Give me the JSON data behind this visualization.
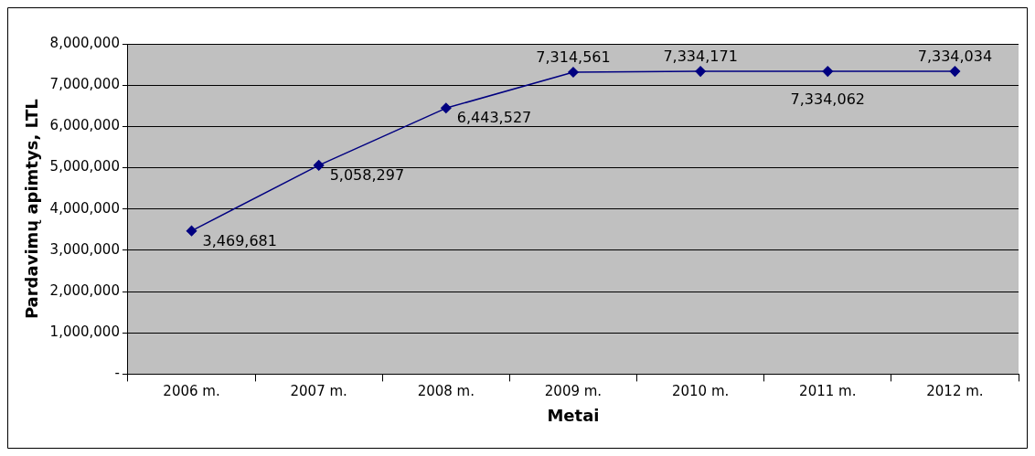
{
  "chart_data": {
    "type": "line",
    "xlabel": "Metai",
    "ylabel": "Pardavimų apimtys, LTL",
    "categories": [
      "2006 m.",
      "2007 m.",
      "2008 m.",
      "2009 m.",
      "2010 m.",
      "2011 m.",
      "2012 m."
    ],
    "series": [
      {
        "color": "#000080",
        "values": [
          3469681,
          5058297,
          6443527,
          7314561,
          7334171,
          7334062,
          7334034
        ],
        "value_labels": [
          "3,469,681",
          "5,058,297",
          "6,443,527",
          "7,314,561",
          "7,334,171",
          "7,334,062",
          "7,334,034"
        ]
      }
    ],
    "ylim": [
      0,
      8000000
    ],
    "yticks": [
      {
        "value": 0,
        "label": "-"
      },
      {
        "value": 1000000,
        "label": "1,000,000"
      },
      {
        "value": 2000000,
        "label": "2,000,000"
      },
      {
        "value": 3000000,
        "label": "3,000,000"
      },
      {
        "value": 4000000,
        "label": "4,000,000"
      },
      {
        "value": 5000000,
        "label": "5,000,000"
      },
      {
        "value": 6000000,
        "label": "6,000,000"
      },
      {
        "value": 7000000,
        "label": "7,000,000"
      },
      {
        "value": 8000000,
        "label": "8,000,000"
      }
    ],
    "grid": "y",
    "marker": "diamond",
    "line_style": "solid",
    "legend": false
  }
}
